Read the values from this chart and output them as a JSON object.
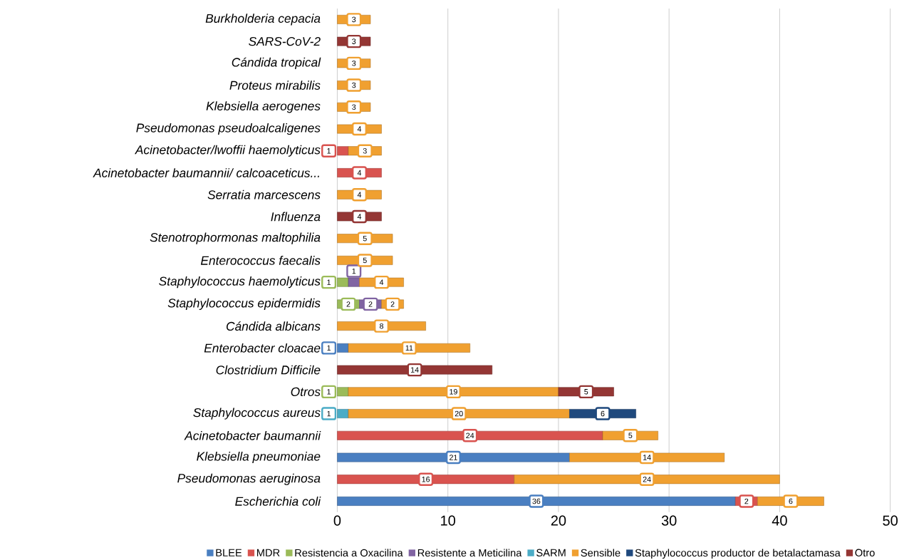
{
  "chart_data": {
    "type": "bar",
    "orientation": "horizontal",
    "stacked": true,
    "data_labels": true,
    "grid": "x",
    "legend": "bottom",
    "categories": [
      "Burkholderia cepacia",
      "SARS-CoV-2",
      "Cándida tropical",
      "Proteus mirabilis",
      "Klebsiella aerogenes",
      "Pseudomonas pseudoalcaligenes",
      "Acinetobacter/lwoffii haemolyticus",
      "Acinetobacter baumannii/ calcoaceticus...",
      "Serratia marcescens",
      "Influenza",
      "Stenotrophormonas maltophilia",
      "Enterococcus faecalis",
      "Staphylococcus haemolyticus",
      "Staphylococcus epidermidis",
      "Cándida albicans",
      "Enterobacter cloacae",
      "Clostridium Difficile",
      "Otros",
      "Staphylococcus aureus",
      "Acinetobacter baumannii",
      "Klebsiella pneumoniae",
      "Pseudomonas aeruginosa",
      "Escherichia coli"
    ],
    "xlim": [
      0,
      50
    ],
    "xticks": [
      0,
      10,
      20,
      30,
      40,
      50
    ],
    "series": [
      {
        "name": "BLEE",
        "color": "#4a7fc1",
        "values": [
          null,
          null,
          null,
          null,
          null,
          null,
          null,
          null,
          null,
          null,
          null,
          null,
          null,
          null,
          null,
          1,
          null,
          null,
          null,
          null,
          21,
          null,
          36
        ]
      },
      {
        "name": "MDR",
        "color": "#d9534f",
        "values": [
          null,
          null,
          null,
          null,
          null,
          null,
          1,
          4,
          null,
          null,
          null,
          null,
          null,
          null,
          null,
          null,
          null,
          null,
          null,
          24,
          null,
          16,
          2
        ]
      },
      {
        "name": "Resistencia a Oxacilina",
        "color": "#9bbb59",
        "values": [
          null,
          null,
          null,
          null,
          null,
          null,
          null,
          null,
          null,
          null,
          null,
          null,
          1,
          2,
          null,
          null,
          null,
          1,
          null,
          null,
          null,
          null,
          null
        ]
      },
      {
        "name": "Resistente a Meticilina",
        "color": "#8064a2",
        "values": [
          null,
          null,
          null,
          null,
          null,
          null,
          null,
          null,
          null,
          null,
          null,
          null,
          1,
          2,
          null,
          null,
          null,
          null,
          null,
          null,
          null,
          null,
          null
        ]
      },
      {
        "name": "SARM",
        "color": "#4bacc6",
        "values": [
          null,
          null,
          null,
          null,
          null,
          null,
          null,
          null,
          null,
          null,
          null,
          null,
          null,
          null,
          null,
          null,
          null,
          null,
          1,
          null,
          null,
          null,
          null
        ]
      },
      {
        "name": "Sensible",
        "color": "#f0a030",
        "values": [
          3,
          null,
          3,
          3,
          3,
          4,
          3,
          null,
          4,
          null,
          5,
          5,
          4,
          2,
          8,
          11,
          null,
          19,
          20,
          5,
          14,
          24,
          6
        ]
      },
      {
        "name": "Staphylococcus productor de betalactamasa",
        "color": "#1f497d",
        "values": [
          null,
          null,
          null,
          null,
          null,
          null,
          null,
          null,
          null,
          null,
          null,
          null,
          null,
          null,
          null,
          null,
          null,
          null,
          6,
          null,
          null,
          null,
          null
        ]
      },
      {
        "name": "Otro",
        "color": "#943634",
        "values": [
          null,
          3,
          null,
          null,
          null,
          null,
          null,
          null,
          null,
          4,
          null,
          null,
          null,
          null,
          null,
          null,
          14,
          5,
          null,
          null,
          null,
          null,
          null
        ]
      }
    ]
  }
}
